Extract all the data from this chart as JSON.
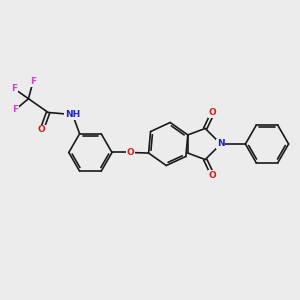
{
  "bg_color": "#ececec",
  "bond_color": "#1a1a1a",
  "N_color": "#2020cc",
  "O_color": "#cc2020",
  "F_color": "#cc44cc",
  "H_color": "#5a9090",
  "font_size": 6.5,
  "line_width": 1.2,
  "figsize": [
    3.0,
    3.0
  ],
  "dpi": 100,
  "xlim": [
    0,
    10
  ],
  "ylim": [
    0,
    10
  ]
}
